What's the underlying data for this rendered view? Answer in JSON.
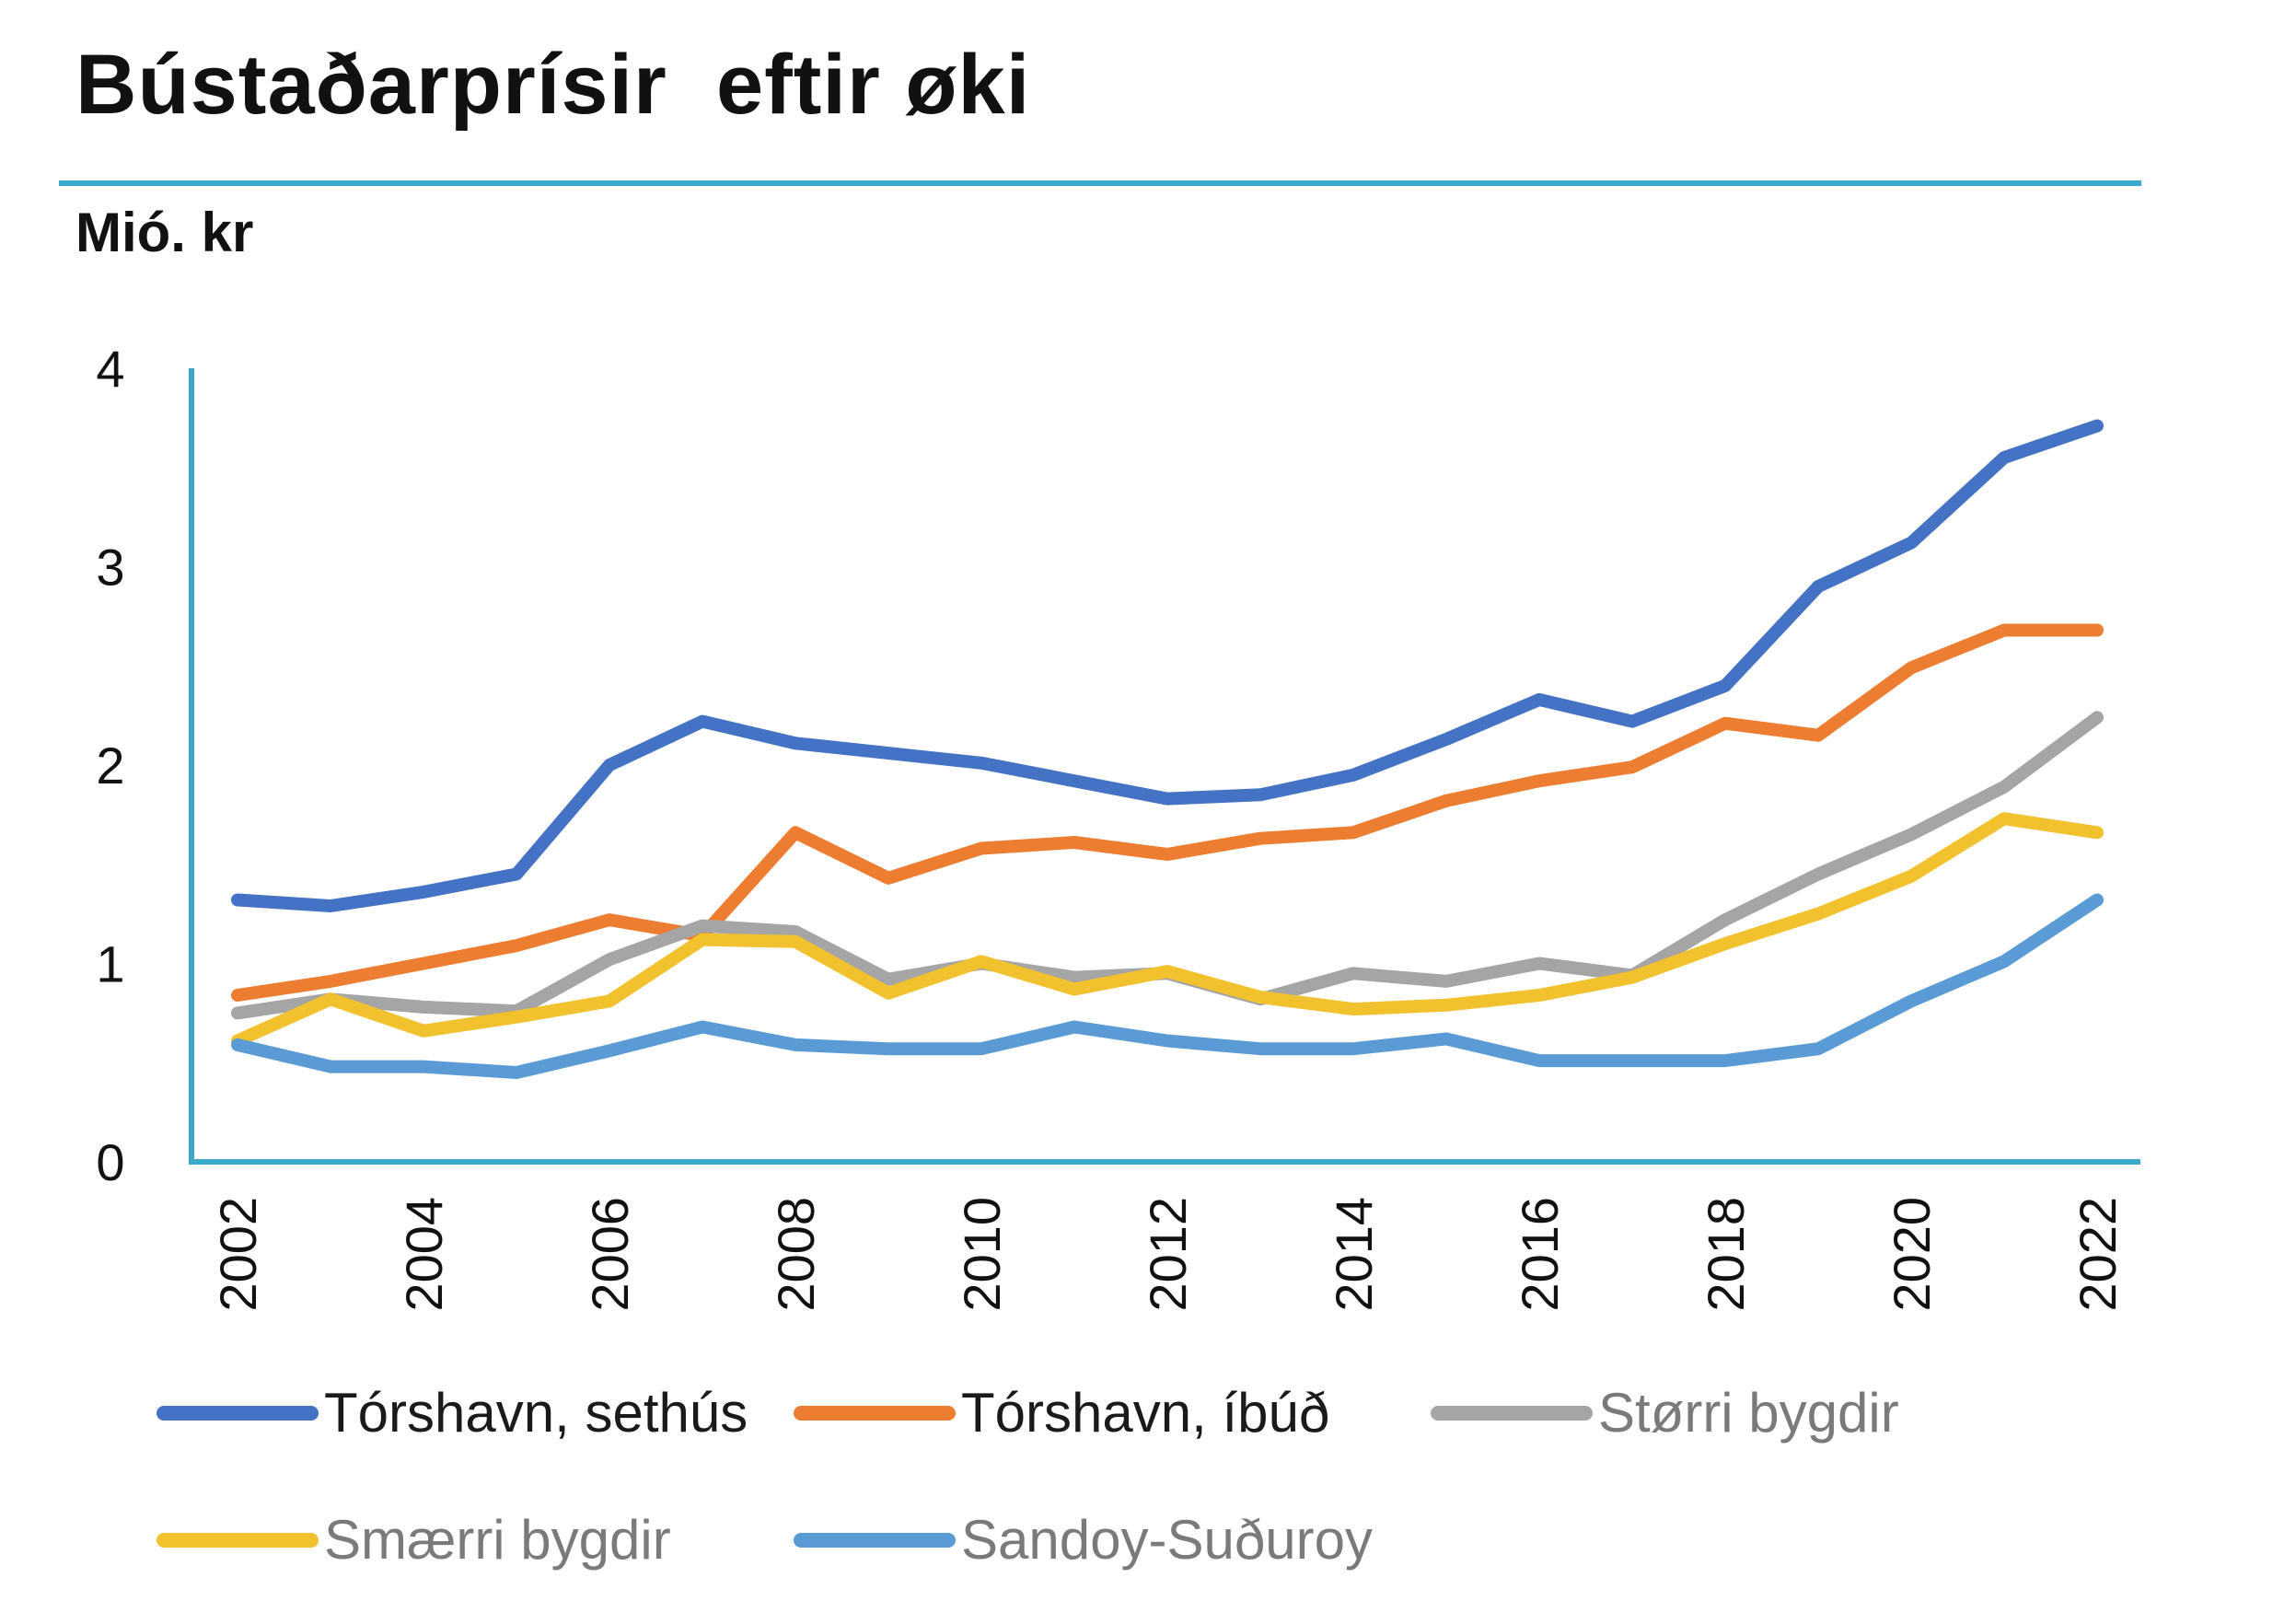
{
  "title": "Bústaðarprísir  eftir øki",
  "unit_label": "Mió. kr",
  "colors": {
    "accent_rule": "#3AAACC",
    "axis": "#3AAACC"
  },
  "chart_data": {
    "type": "line",
    "title": "Bústaðarprísir  eftir øki",
    "ylabel": "Mió. kr",
    "xlabel": "",
    "x": [
      2002,
      2003,
      2004,
      2005,
      2006,
      2007,
      2008,
      2009,
      2010,
      2011,
      2012,
      2013,
      2014,
      2015,
      2016,
      2017,
      2018,
      2019,
      2020,
      2021,
      2022
    ],
    "x_tick_labels": [
      "2002",
      "2004",
      "2006",
      "2008",
      "2010",
      "2012",
      "2014",
      "2016",
      "2018",
      "2020",
      "2022"
    ],
    "y_ticks": [
      0,
      1,
      2,
      3,
      4
    ],
    "ylim": [
      0,
      4
    ],
    "grid": false,
    "legend_position": "bottom",
    "series": [
      {
        "name": "Tórshavn, sethús",
        "color": "#4472C4",
        "values": [
          1.32,
          1.29,
          1.36,
          1.45,
          2.0,
          2.22,
          2.11,
          2.06,
          2.01,
          1.92,
          1.83,
          1.85,
          1.95,
          2.13,
          2.33,
          2.22,
          2.4,
          2.9,
          3.12,
          3.55,
          3.71
        ]
      },
      {
        "name": "Tórshavn, íbúð",
        "color": "#ED7D31",
        "values": [
          0.84,
          0.91,
          1.0,
          1.09,
          1.22,
          1.14,
          1.66,
          1.43,
          1.58,
          1.61,
          1.55,
          1.63,
          1.66,
          1.82,
          1.92,
          1.99,
          2.21,
          2.15,
          2.49,
          2.68,
          2.68
        ]
      },
      {
        "name": "Størri bygdir",
        "color": "#A5A5A5",
        "values": [
          0.75,
          0.82,
          0.78,
          0.76,
          1.02,
          1.19,
          1.16,
          0.92,
          1.0,
          0.93,
          0.95,
          0.82,
          0.95,
          0.91,
          1.0,
          0.94,
          1.22,
          1.45,
          1.65,
          1.89,
          2.24
        ]
      },
      {
        "name": "Smærri bygdir",
        "color": "#F2C12E",
        "values": [
          0.61,
          0.82,
          0.66,
          0.73,
          0.81,
          1.12,
          1.11,
          0.85,
          1.01,
          0.87,
          0.96,
          0.83,
          0.77,
          0.79,
          0.84,
          0.93,
          1.1,
          1.25,
          1.44,
          1.73,
          1.66
        ]
      },
      {
        "name": "Sandoy-Suðuroy",
        "color": "#5B9BD5",
        "values": [
          0.59,
          0.48,
          0.48,
          0.45,
          0.56,
          0.68,
          0.59,
          0.57,
          0.57,
          0.68,
          0.61,
          0.57,
          0.57,
          0.62,
          0.51,
          0.51,
          0.51,
          0.57,
          0.81,
          1.01,
          1.32
        ]
      }
    ]
  }
}
